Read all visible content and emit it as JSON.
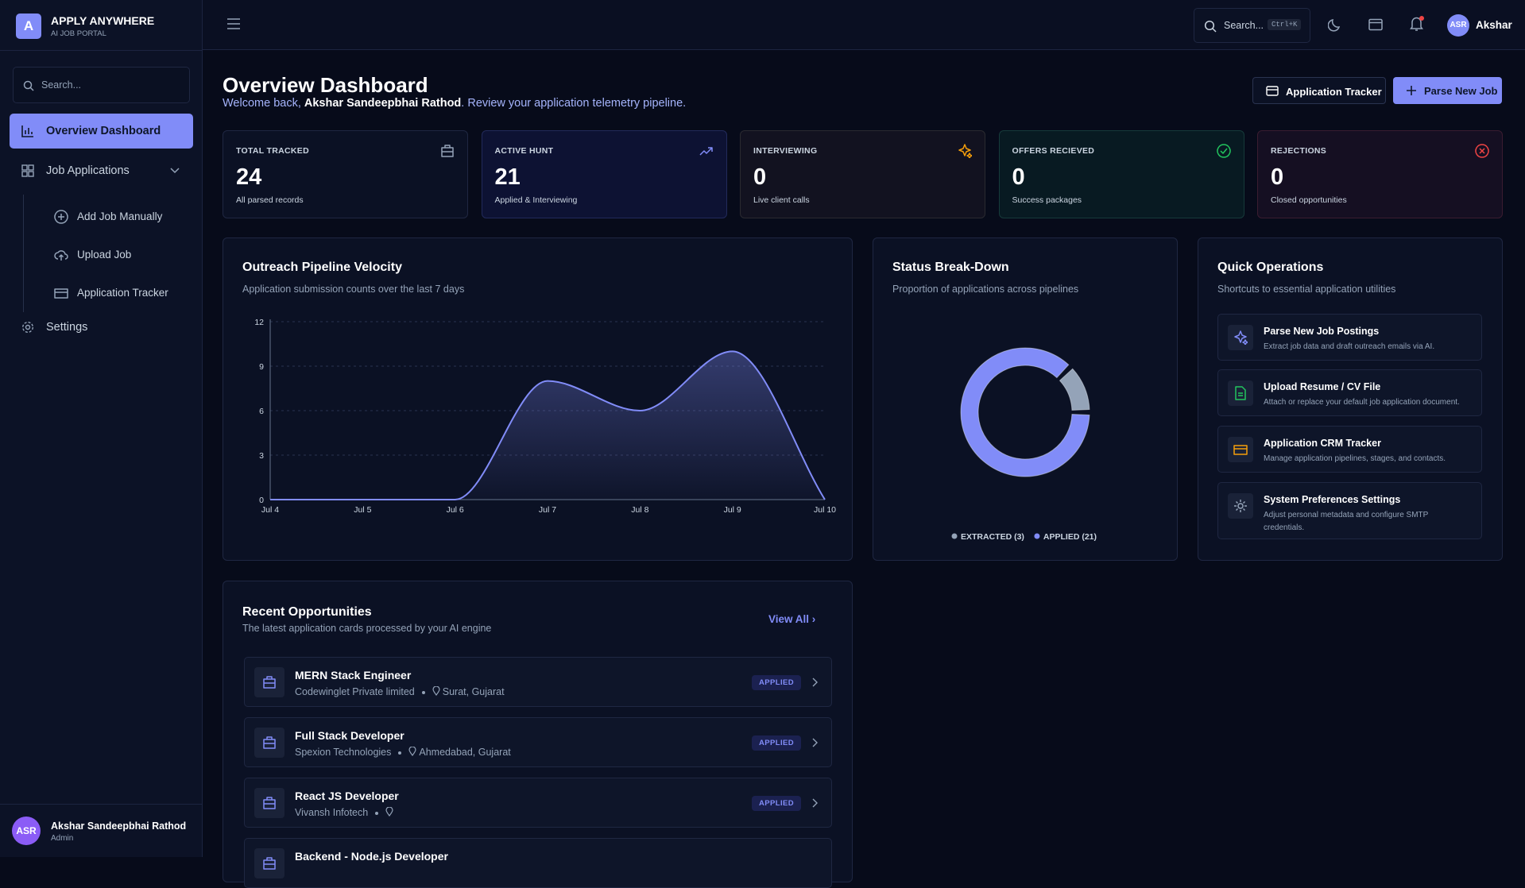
{
  "sidebar": {
    "logo": "A",
    "brand": "APPLY ANYWHERE",
    "tagline": "AI JOB PORTAL",
    "search_placeholder": "Search...",
    "nav": [
      "Overview Dashboard",
      "Job Applications",
      "Settings"
    ],
    "sub_nav": [
      "Add Job Manually",
      "Upload Job",
      "Application Tracker"
    ],
    "user": {
      "initials": "ASR",
      "name": "Akshar Sandeepbhai Rathod",
      "role": "Admin"
    }
  },
  "header": {
    "search": "Search...",
    "shortcut": "Ctrl+K",
    "initials": "ASR",
    "user": "Akshar"
  },
  "page": {
    "title": "Overview Dashboard",
    "welcome_prefix": "Welcome back, ",
    "welcome_name": "Akshar Sandeepbhai Rathod",
    "welcome_suffix": ". Review your application telemetry pipeline.",
    "buttons": [
      "Application Tracker",
      "Parse New Job"
    ]
  },
  "stats": [
    {
      "label": "TOTAL TRACKED",
      "value": "24",
      "note": "All parsed records"
    },
    {
      "label": "ACTIVE HUNT",
      "value": "21",
      "note": "Applied & Interviewing"
    },
    {
      "label": "INTERVIEWING",
      "value": "0",
      "note": "Live client calls"
    },
    {
      "label": "OFFERS RECIEVED",
      "value": "0",
      "note": "Success packages"
    },
    {
      "label": "REJECTIONS",
      "value": "0",
      "note": "Closed opportunities"
    }
  ],
  "chart_data": [
    {
      "type": "area",
      "title": "Outreach Pipeline Velocity",
      "subtitle": "Application submission counts over the last 7 days",
      "categories": [
        "Jul 4",
        "Jul 5",
        "Jul 6",
        "Jul 7",
        "Jul 8",
        "Jul 9",
        "Jul 10"
      ],
      "values": [
        0,
        0,
        0,
        8,
        6,
        10,
        0
      ],
      "ylim": [
        0,
        12
      ],
      "yticks": [
        0,
        3,
        6,
        9,
        12
      ],
      "grid": true,
      "color": "#818cf8"
    },
    {
      "type": "donut",
      "title": "Status Break-Down",
      "subtitle": "Proportion of applications across pipelines",
      "categories": [
        "EXTRACTED (3)",
        "APPLIED (21)"
      ],
      "values": [
        3,
        21
      ],
      "colors": [
        "#94a3b8",
        "#818cf8"
      ],
      "legend": "bottom"
    }
  ],
  "quick_operations": {
    "title": "Quick Operations",
    "subtitle": "Shortcuts to essential application utilities",
    "items": [
      {
        "title": "Parse New Job Postings",
        "desc": "Extract job data and draft outreach emails via AI."
      },
      {
        "title": "Upload Resume / CV File",
        "desc": "Attach or replace your default job application document."
      },
      {
        "title": "Application CRM Tracker",
        "desc": "Manage application pipelines, stages, and contacts."
      },
      {
        "title": "System Preferences Settings",
        "desc": "Adjust personal metadata and configure SMTP credentials."
      }
    ]
  },
  "recent": {
    "title": "Recent Opportunities",
    "subtitle": "The latest application cards processed by your AI engine",
    "view_all": "View All",
    "items": [
      {
        "title": "MERN Stack Engineer",
        "company": "Codewinglet Private limited",
        "location": "Surat, Gujarat",
        "status": "APPLIED"
      },
      {
        "title": "Full Stack Developer",
        "company": "Spexion Technologies",
        "location": "Ahmedabad, Gujarat",
        "status": "APPLIED"
      },
      {
        "title": "React JS Developer",
        "company": "Vivansh Infotech",
        "status": "APPLIED"
      },
      {
        "title": "Backend - Node.js Developer"
      }
    ]
  }
}
